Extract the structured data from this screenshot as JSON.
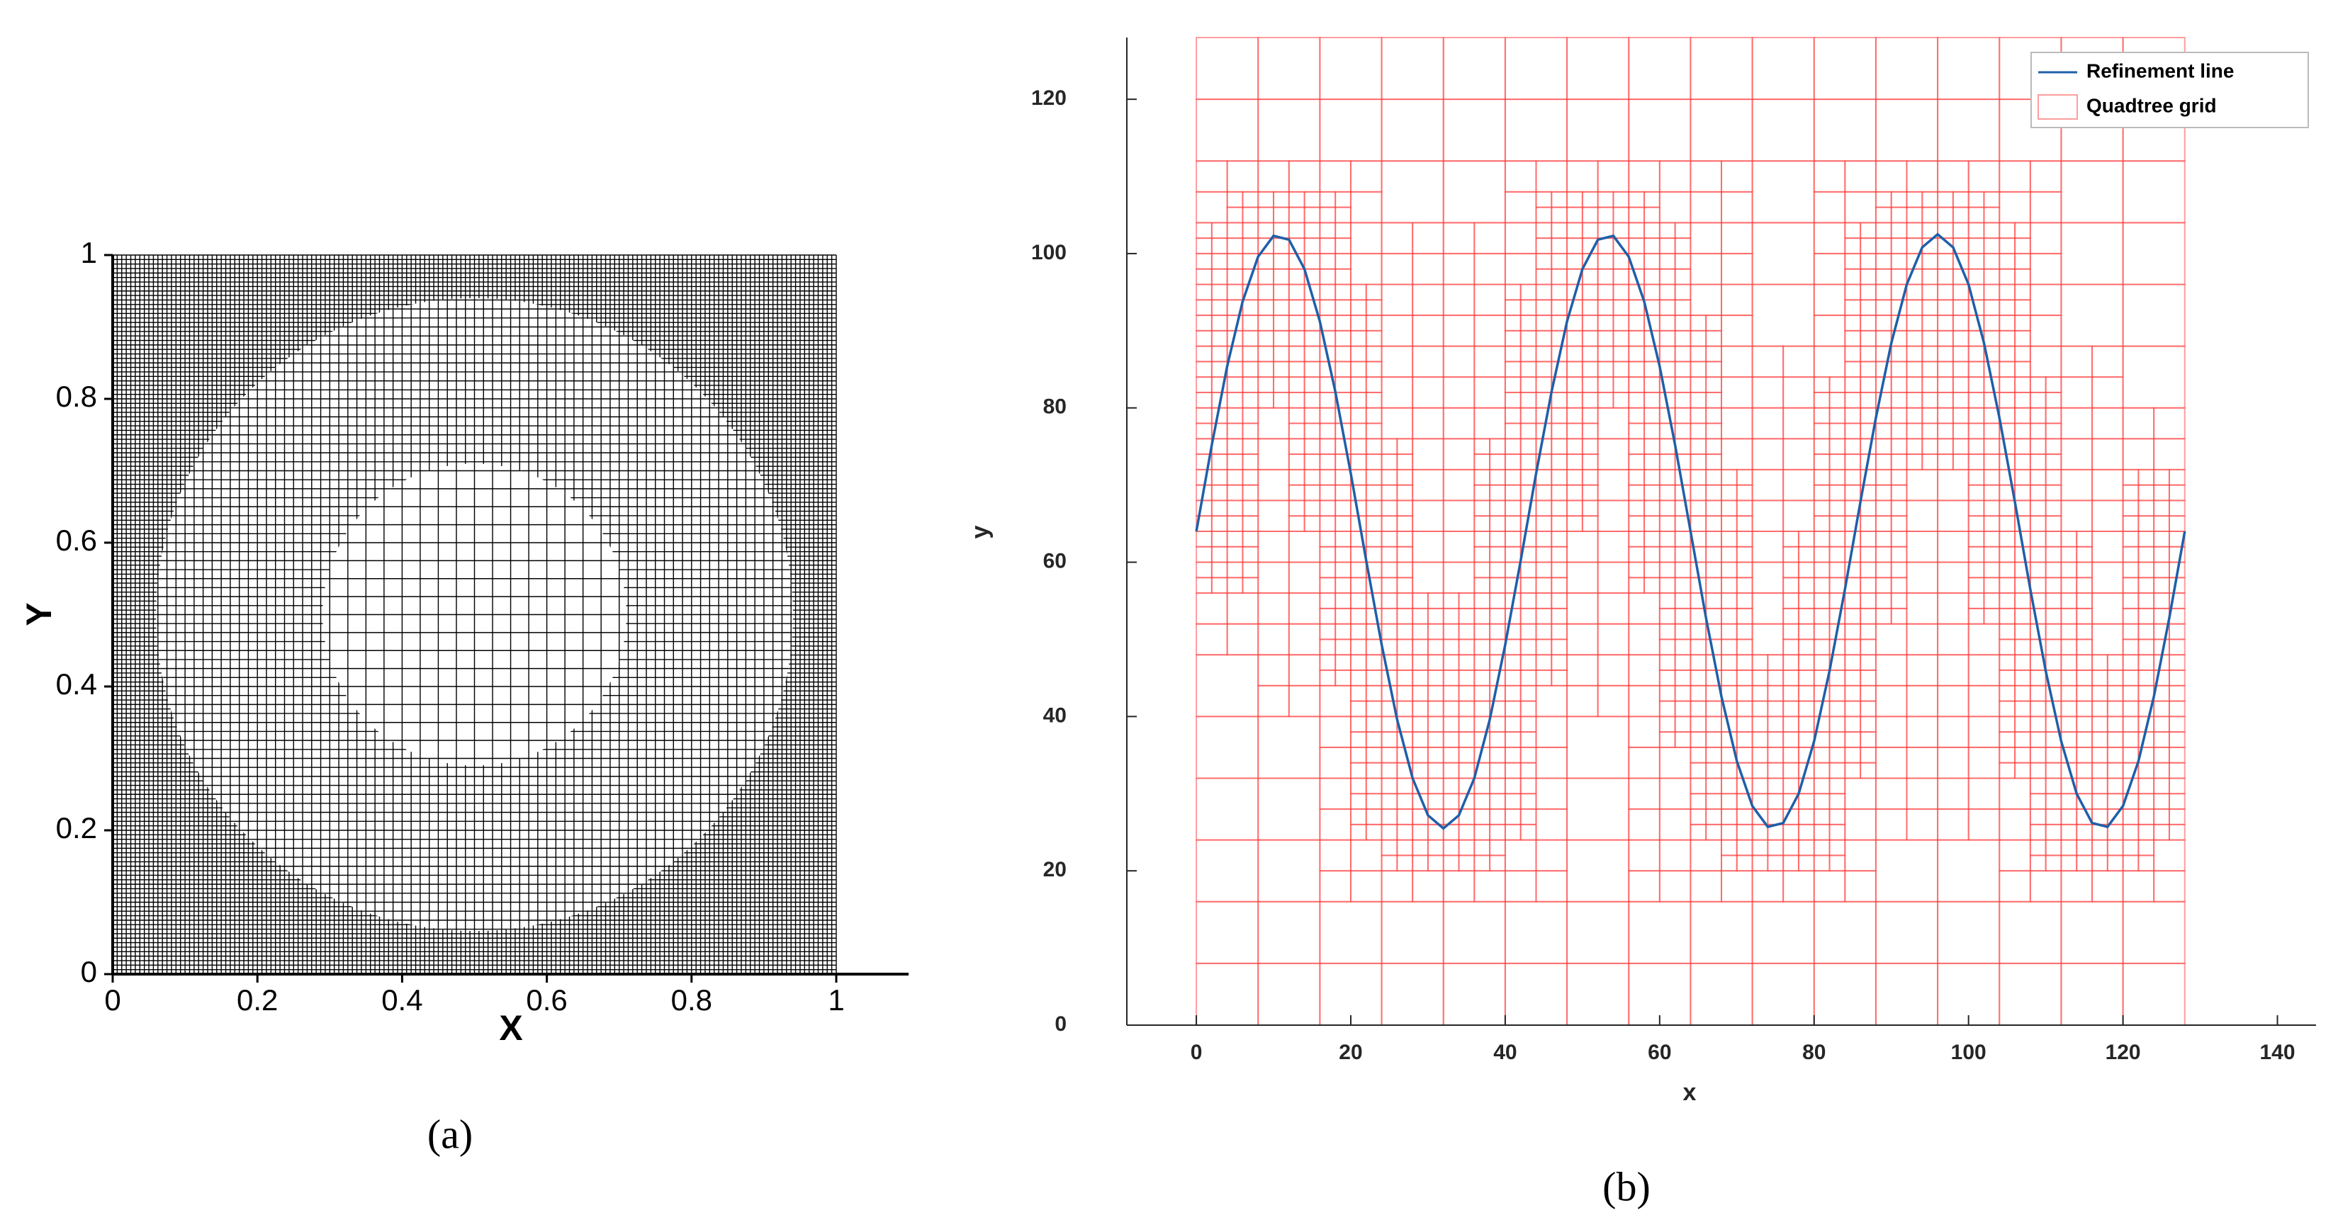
{
  "chart_data": [
    {
      "type": "mesh",
      "color": "#000000",
      "xlabel": "X",
      "ylabel": "Y",
      "caption": "(a)",
      "xlim": [
        0,
        1.1
      ],
      "ylim": [
        0,
        1
      ],
      "xticks": [
        0,
        0.2,
        0.4,
        0.6,
        0.8,
        1
      ],
      "yticks": [
        0,
        0.2,
        0.4,
        0.6,
        0.8,
        1
      ]
    },
    {
      "type": "line",
      "xlabel": "x",
      "ylabel": "y",
      "caption": "(b)",
      "x": [
        0,
        2,
        4,
        6,
        8,
        10,
        12,
        14,
        16,
        18,
        20,
        22,
        24,
        26,
        28,
        30,
        32,
        34,
        36,
        38,
        40,
        42,
        44,
        46,
        48,
        50,
        52,
        54,
        56,
        58,
        60,
        62,
        64,
        66,
        68,
        70,
        72,
        74,
        76,
        78,
        80,
        82,
        84,
        86,
        88,
        90,
        92,
        94,
        96,
        98,
        100,
        102,
        104,
        106,
        108,
        110,
        112,
        114,
        116,
        118,
        120,
        122,
        124,
        126,
        128
      ],
      "series": [
        {
          "name": "Refinement line",
          "color": "#1f5fa8",
          "values": [
            64,
            75.2,
            85.4,
            93.8,
            99.6,
            102.3,
            101.8,
            98.0,
            91.2,
            82.1,
            71.5,
            60.2,
            49.3,
            39.6,
            32.0,
            27.2,
            25.5,
            27.2,
            32.0,
            39.6,
            49.3,
            60.2,
            71.5,
            82.1,
            91.2,
            98.0,
            101.8,
            102.3,
            99.6,
            93.8,
            85.4,
            75.2,
            64,
            52.8,
            42.6,
            34.2,
            28.4,
            25.7,
            26.2,
            30.0,
            36.8,
            45.9,
            56.5,
            67.8,
            78.7,
            88.4,
            96.0,
            100.8,
            102.5,
            100.8,
            96.0,
            88.4,
            78.7,
            67.8,
            56.5,
            45.9,
            36.8,
            30.0,
            26.2,
            25.7,
            28.4,
            34.2,
            42.6,
            52.8,
            64
          ]
        }
      ],
      "overlay": {
        "name": "Quadtree grid",
        "color": "#ff3b3b"
      },
      "legend": "upper right",
      "xlim": [
        -9,
        145
      ],
      "ylim": [
        0,
        128
      ],
      "xticks": [
        0,
        20,
        40,
        60,
        80,
        100,
        120,
        140
      ],
      "yticks": [
        0,
        20,
        40,
        60,
        80,
        100,
        120
      ]
    }
  ]
}
